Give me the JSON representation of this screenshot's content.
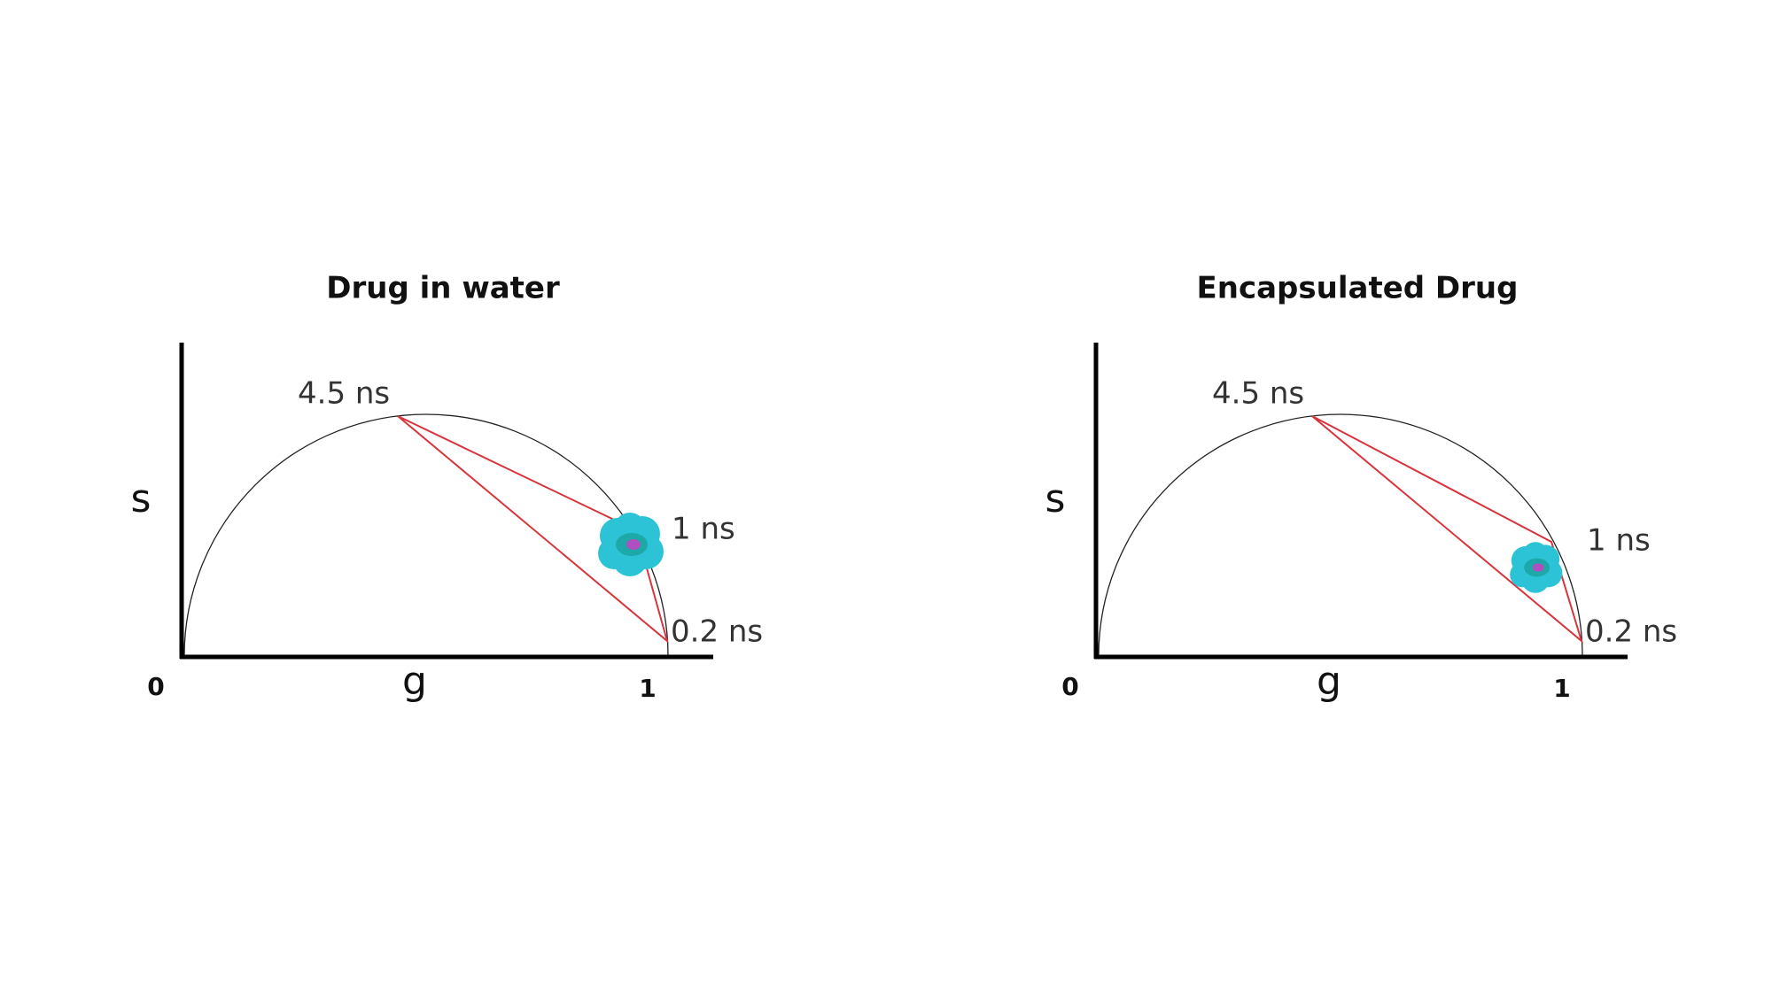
{
  "panels": [
    {
      "title": "Drug in water",
      "y_axis_label": "s",
      "x_axis_label": "g",
      "origin_label": "0",
      "x_end_label": "1",
      "points": [
        {
          "label": "4.5 ns"
        },
        {
          "label": "1 ns"
        },
        {
          "label": "0.2 ns"
        }
      ]
    },
    {
      "title": "Encapsulated Drug",
      "y_axis_label": "s",
      "x_axis_label": "g",
      "origin_label": "0",
      "x_end_label": "1",
      "points": [
        {
          "label": "4.5 ns"
        },
        {
          "label": "1 ns"
        },
        {
          "label": "0.2 ns"
        }
      ]
    }
  ]
}
